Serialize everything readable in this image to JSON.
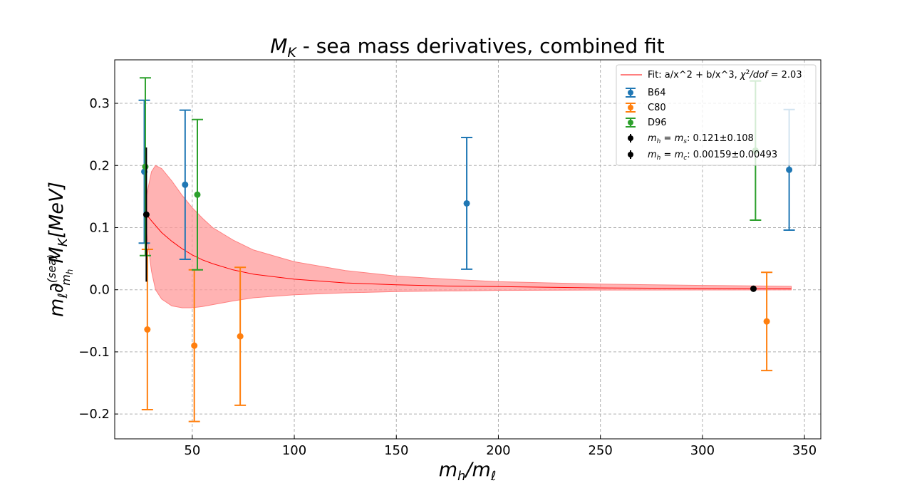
{
  "chart_data": {
    "type": "scatter",
    "title_prefix": "M",
    "title_subscript": "K",
    "title_rest": " - sea mass derivatives, combined fit",
    "xlabel_parts": [
      "m",
      "h",
      "/m",
      "ℓ"
    ],
    "ylabel_parts": [
      "m",
      "ℓ",
      "∂",
      "(sea)",
      "m",
      "h",
      "M",
      "K",
      "[MeV]"
    ],
    "xlim": [
      12,
      358
    ],
    "ylim": [
      -0.24,
      0.37
    ],
    "xticks": [
      50,
      100,
      150,
      200,
      250,
      300,
      350
    ],
    "xtick_labels": [
      "50",
      "100",
      "150",
      "200",
      "250",
      "300",
      "350"
    ],
    "yticks": [
      -0.2,
      -0.1,
      0.0,
      0.1,
      0.2,
      0.3
    ],
    "ytick_labels": [
      "−0.2",
      "−0.1",
      "0.0",
      "0.1",
      "0.2",
      "0.3"
    ],
    "grid": true,
    "legend_position": "top-right",
    "series": [
      {
        "name": "B64",
        "color": "#1f77b4",
        "points": [
          {
            "x": 26.5,
            "y": 0.19,
            "err": 0.115
          },
          {
            "x": 46.5,
            "y": 0.169,
            "err": 0.12
          },
          {
            "x": 184.5,
            "y": 0.139,
            "err": 0.106
          },
          {
            "x": 342.5,
            "y": 0.193,
            "err": 0.097
          }
        ]
      },
      {
        "name": "C80",
        "color": "#ff7f0e",
        "points": [
          {
            "x": 28.0,
            "y": -0.064,
            "err": 0.129
          },
          {
            "x": 51.0,
            "y": -0.09,
            "err": 0.122
          },
          {
            "x": 73.5,
            "y": -0.075,
            "err": 0.111
          },
          {
            "x": 331.5,
            "y": -0.051,
            "err": 0.079
          }
        ]
      },
      {
        "name": "D96",
        "color": "#2ca02c",
        "points": [
          {
            "x": 27.0,
            "y": 0.198,
            "err": 0.143
          },
          {
            "x": 52.5,
            "y": 0.153,
            "err": 0.121
          },
          {
            "x": 326.0,
            "y": 0.224,
            "err": 0.112
          }
        ]
      }
    ],
    "highlights": [
      {
        "label_parts": [
          "m",
          "h",
          " = ",
          "m",
          "s",
          ": 0.121±0.108"
        ],
        "color": "#000000",
        "x": 27.5,
        "y": 0.121,
        "err": 0.108
      },
      {
        "label_parts": [
          "m",
          "h",
          " = ",
          "m",
          "c",
          ": 0.00159±0.00493"
        ],
        "color": "#000000",
        "x": 325.0,
        "y": 0.00159,
        "err": 0.00493
      }
    ],
    "fit": {
      "label_parts": [
        "Fit: a/x^2 + b/x^3, ",
        "χ",
        "2",
        "/dof",
        " = 2.03"
      ],
      "color": "#ff0000",
      "band_color": "#ff9a9a",
      "x_range": [
        27.5,
        343.5
      ],
      "curve": [
        {
          "x": 27.5,
          "y": 0.121
        },
        {
          "x": 30,
          "y": 0.111
        },
        {
          "x": 35,
          "y": 0.092
        },
        {
          "x": 40,
          "y": 0.078
        },
        {
          "x": 45,
          "y": 0.066
        },
        {
          "x": 50,
          "y": 0.056
        },
        {
          "x": 55,
          "y": 0.048
        },
        {
          "x": 60,
          "y": 0.042
        },
        {
          "x": 70,
          "y": 0.032
        },
        {
          "x": 80,
          "y": 0.025
        },
        {
          "x": 100,
          "y": 0.017
        },
        {
          "x": 125,
          "y": 0.011
        },
        {
          "x": 150,
          "y": 0.008
        },
        {
          "x": 175,
          "y": 0.006
        },
        {
          "x": 200,
          "y": 0.005
        },
        {
          "x": 250,
          "y": 0.003
        },
        {
          "x": 300,
          "y": 0.002
        },
        {
          "x": 343.5,
          "y": 0.0015
        }
      ],
      "band_upper": [
        {
          "x": 27.5,
          "y": 0.15
        },
        {
          "x": 30,
          "y": 0.19
        },
        {
          "x": 32,
          "y": 0.2
        },
        {
          "x": 35,
          "y": 0.195
        },
        {
          "x": 40,
          "y": 0.175
        },
        {
          "x": 45,
          "y": 0.152
        },
        {
          "x": 50,
          "y": 0.132
        },
        {
          "x": 55,
          "y": 0.115
        },
        {
          "x": 60,
          "y": 0.1
        },
        {
          "x": 70,
          "y": 0.08
        },
        {
          "x": 80,
          "y": 0.064
        },
        {
          "x": 100,
          "y": 0.045
        },
        {
          "x": 125,
          "y": 0.031
        },
        {
          "x": 150,
          "y": 0.022
        },
        {
          "x": 175,
          "y": 0.017
        },
        {
          "x": 200,
          "y": 0.013
        },
        {
          "x": 250,
          "y": 0.009
        },
        {
          "x": 300,
          "y": 0.007
        },
        {
          "x": 343.5,
          "y": 0.0055
        }
      ],
      "band_lower": [
        {
          "x": 27.5,
          "y": 0.095
        },
        {
          "x": 30,
          "y": 0.03
        },
        {
          "x": 32,
          "y": 0.0
        },
        {
          "x": 35,
          "y": -0.015
        },
        {
          "x": 40,
          "y": -0.026
        },
        {
          "x": 45,
          "y": -0.029
        },
        {
          "x": 50,
          "y": -0.029
        },
        {
          "x": 55,
          "y": -0.027
        },
        {
          "x": 60,
          "y": -0.024
        },
        {
          "x": 70,
          "y": -0.018
        },
        {
          "x": 80,
          "y": -0.013
        },
        {
          "x": 100,
          "y": -0.008
        },
        {
          "x": 125,
          "y": -0.005
        },
        {
          "x": 150,
          "y": -0.003
        },
        {
          "x": 175,
          "y": -0.002
        },
        {
          "x": 200,
          "y": -0.001
        },
        {
          "x": 250,
          "y": -0.0005
        },
        {
          "x": 300,
          "y": -0.0003
        },
        {
          "x": 343.5,
          "y": -0.0002
        }
      ]
    }
  }
}
